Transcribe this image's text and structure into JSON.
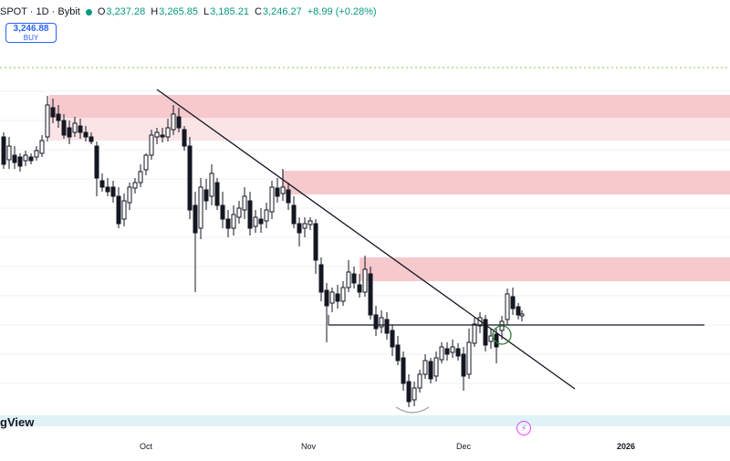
{
  "header": {
    "symbol": "SPOT · 1D · Bybit",
    "open_k": "O",
    "open": "3,237.28",
    "high_k": "H",
    "high": "3,265.85",
    "low_k": "L",
    "low": "3,185.21",
    "close_k": "C",
    "close": "3,246.27",
    "change": "+8.99 (+0.28%)"
  },
  "trade_box": {
    "price": "3,246.88",
    "label": "BUY"
  },
  "brand": "gView",
  "time_axis": [
    "Oct",
    "Nov",
    "Dec",
    "2026"
  ],
  "icons": [
    "status-dot-icon",
    "lightning-icon"
  ],
  "colors": {
    "up": "#089981",
    "down": "#131722",
    "zone": "#f6c9cd",
    "zone_light": "#fbe4e6",
    "strip": "#dff3f7",
    "circle": "#2e7d32",
    "accent": "#2962ff"
  }
}
